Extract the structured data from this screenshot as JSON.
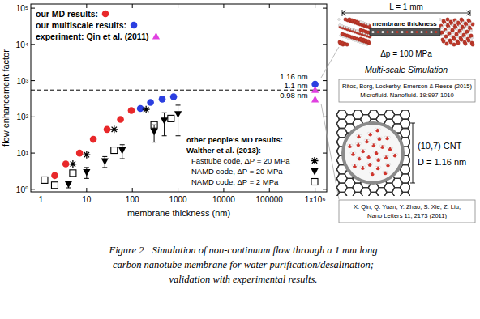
{
  "chart_data": {
    "type": "scatter",
    "log": true,
    "grid": false,
    "legend": "upper left",
    "xlabel": "membrane thickness (nm)",
    "ylabel": "flow enhancement factor",
    "xlim": [
      0.6,
      1800000
    ],
    "ylim": [
      0.85,
      130000
    ],
    "xticks": [
      1,
      10,
      100,
      1000,
      10000,
      100000,
      {
        "value": 1000000,
        "label": "1x10⁶"
      }
    ],
    "yticks": [
      {
        "value": 1,
        "label": "10⁰"
      },
      {
        "value": 10,
        "label": "10¹"
      },
      {
        "value": 100,
        "label": "10²"
      },
      {
        "value": 1000,
        "label": "10³"
      },
      {
        "value": 10000,
        "label": "10⁴"
      },
      {
        "value": 100000,
        "label": "10⁵"
      }
    ],
    "legend_titles": [
      "other people's MD results:",
      "Walther et al. (2013):"
    ],
    "reference_line": {
      "value": 550,
      "line_style": "dashed",
      "color": "#000000"
    },
    "series": [
      {
        "name": "our MD results:",
        "color": "#e8282a",
        "marker": "circle",
        "x": [
          2,
          3.5,
          7,
          14,
          28,
          55,
          95
        ],
        "values": [
          2.4,
          5,
          10,
          24,
          45,
          85,
          150
        ]
      },
      {
        "name": "our multiscale results:",
        "color": "#2b3fe0",
        "marker": "circle",
        "x": [
          150,
          250,
          450,
          800,
          1000000
        ],
        "values": [
          170,
          250,
          310,
          360,
          800
        ],
        "point_labels": [
          null,
          null,
          null,
          null,
          "1.16 nm"
        ]
      },
      {
        "name": "experiment: Qin et al. (2011)",
        "color": "#e040e0",
        "marker": "triangle",
        "x": [
          1000000,
          1000000
        ],
        "values": [
          550,
          300
        ],
        "point_labels": [
          "1.1 nm",
          "0.98 nm"
        ]
      },
      {
        "name": "Fasttube code, ΔP = 20 MPa",
        "color": "#000000",
        "marker": "asterisk",
        "x": [
          5,
          10,
          40,
          200
        ],
        "values": [
          5,
          9,
          45,
          160
        ]
      },
      {
        "name": "NAMD code, ΔP = 20 MPa",
        "color": "#000000",
        "marker": "triangle-down",
        "x": [
          4,
          10,
          25,
          60,
          300,
          500,
          1000
        ],
        "values": [
          1.4,
          3,
          6,
          12,
          40,
          80,
          120
        ],
        "errors": [
          0.3,
          1,
          2,
          5,
          20,
          50,
          90
        ]
      },
      {
        "name": "NAMD code, ΔP = 2 MPa",
        "color": "#000000",
        "marker": "square-open",
        "x": [
          1.2,
          2,
          5,
          40,
          300,
          700
        ],
        "values": [
          1.8,
          1.3,
          2.8,
          12,
          60,
          90
        ]
      }
    ]
  },
  "simulation": {
    "length_label": "L = 1 mm",
    "membrane_label": "membrane thickness",
    "pressure_label": "Δp = 100 MPa",
    "title": "Multi-scale Simulation"
  },
  "nanotube": {
    "chirality_label": "(10,7) CNT",
    "diameter_label": "D = 1.16 nm"
  },
  "references": [
    {
      "lines": [
        "Ritos, Borg, Lockerby, Emerson & Reese (2015)",
        "Microfluid. Nanofluid. 19:997-1010"
      ]
    },
    {
      "lines": [
        "X. Qin, Q. Yuan, Y. Zhao, S. Xie, Z. Liu,",
        "Nano Letters 11, 2173 (2011)"
      ]
    }
  ],
  "caption": {
    "label": "Figure 2",
    "lines": [
      "Simulation of non-continuum flow through a 1 mm long",
      "carbon nanotube  membrane for water purification/desalination;",
      "validation with experimental results."
    ]
  }
}
